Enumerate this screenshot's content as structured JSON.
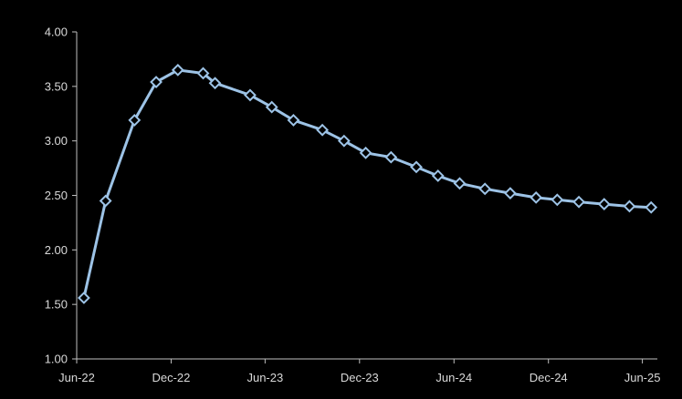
{
  "chart_data": {
    "type": "line",
    "title": "",
    "xlabel": "",
    "ylabel": "",
    "ylim": [
      1.0,
      4.0
    ],
    "y_ticks": [
      "1.00",
      "1.50",
      "2.00",
      "2.50",
      "3.00",
      "3.50",
      "4.00"
    ],
    "x_ticks": [
      "Jun-22",
      "Dec-22",
      "Jun-23",
      "Dec-23",
      "Jun-24",
      "Dec-24",
      "Jun-25"
    ],
    "xlim": [
      "2022-06-01",
      "2025-06-30"
    ],
    "grid": false,
    "legend": "none",
    "colors": {
      "line": "#9dc3e6",
      "marker_fill": "#000000",
      "axis": "#bfbfbf",
      "text": "#d9d9d9",
      "background": "#000000"
    },
    "series": [
      {
        "points": [
          {
            "x": "2022-06-15",
            "y": 1.56
          },
          {
            "x": "2022-07-27",
            "y": 2.45
          },
          {
            "x": "2022-09-21",
            "y": 3.19
          },
          {
            "x": "2022-11-02",
            "y": 3.54
          },
          {
            "x": "2022-12-14",
            "y": 3.65
          },
          {
            "x": "2023-02-01",
            "y": 3.62
          },
          {
            "x": "2023-02-24",
            "y": 3.53
          },
          {
            "x": "2023-05-03",
            "y": 3.42
          },
          {
            "x": "2023-06-14",
            "y": 3.31
          },
          {
            "x": "2023-07-26",
            "y": 3.19
          },
          {
            "x": "2023-09-20",
            "y": 3.1
          },
          {
            "x": "2023-11-01",
            "y": 3.0
          },
          {
            "x": "2023-12-13",
            "y": 2.89
          },
          {
            "x": "2024-01-31",
            "y": 2.85
          },
          {
            "x": "2024-03-20",
            "y": 2.76
          },
          {
            "x": "2024-05-01",
            "y": 2.68
          },
          {
            "x": "2024-06-12",
            "y": 2.61
          },
          {
            "x": "2024-07-31",
            "y": 2.56
          },
          {
            "x": "2024-09-18",
            "y": 2.52
          },
          {
            "x": "2024-11-07",
            "y": 2.48
          },
          {
            "x": "2024-12-18",
            "y": 2.46
          },
          {
            "x": "2025-01-29",
            "y": 2.44
          },
          {
            "x": "2025-03-19",
            "y": 2.42
          },
          {
            "x": "2025-05-07",
            "y": 2.4
          },
          {
            "x": "2025-06-18",
            "y": 2.39
          }
        ]
      }
    ]
  }
}
